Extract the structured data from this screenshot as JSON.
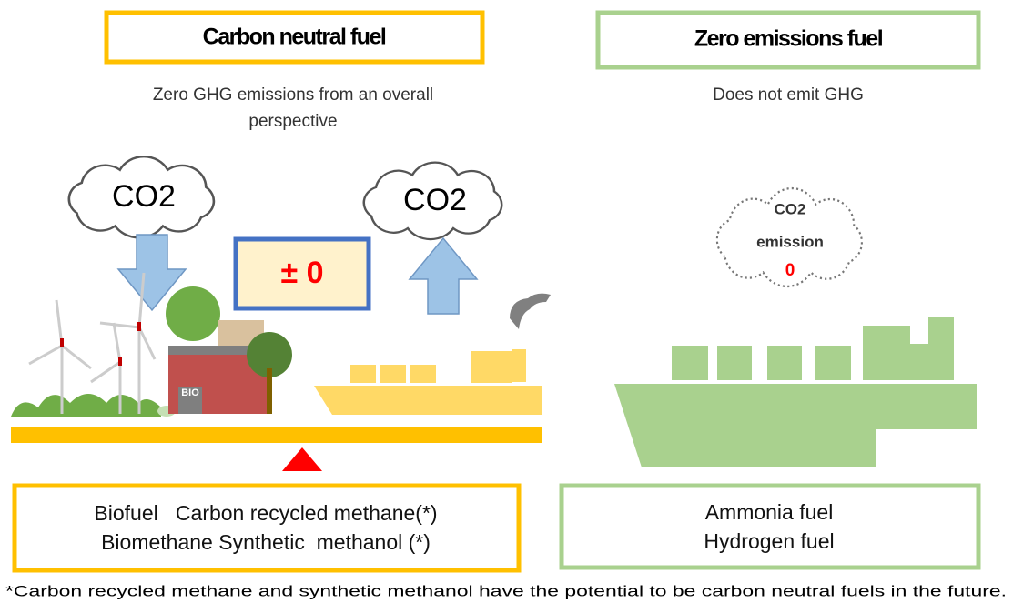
{
  "left": {
    "title": "Carbon neutral fuel",
    "description": [
      "Zero GHG emissions from an overall",
      "perspective"
    ],
    "cloud_in": "CO2",
    "cloud_out": "CO2",
    "balance": "± 0",
    "factory_label": "BIO",
    "fuels": [
      "Biofuel   Carbon recycled methane(*)",
      "Biomethane Synthetic  methanol (*)"
    ]
  },
  "right": {
    "title": "Zero emissions fuel",
    "description": "Does not emit GHG",
    "cloud": [
      "CO2",
      "emission",
      "0"
    ],
    "fuels": [
      "Ammonia fuel",
      "Hydrogen fuel"
    ]
  },
  "footnote": "*Carbon recycled methane and synthetic methanol have the potential to be carbon neutral fuels in the future."
}
